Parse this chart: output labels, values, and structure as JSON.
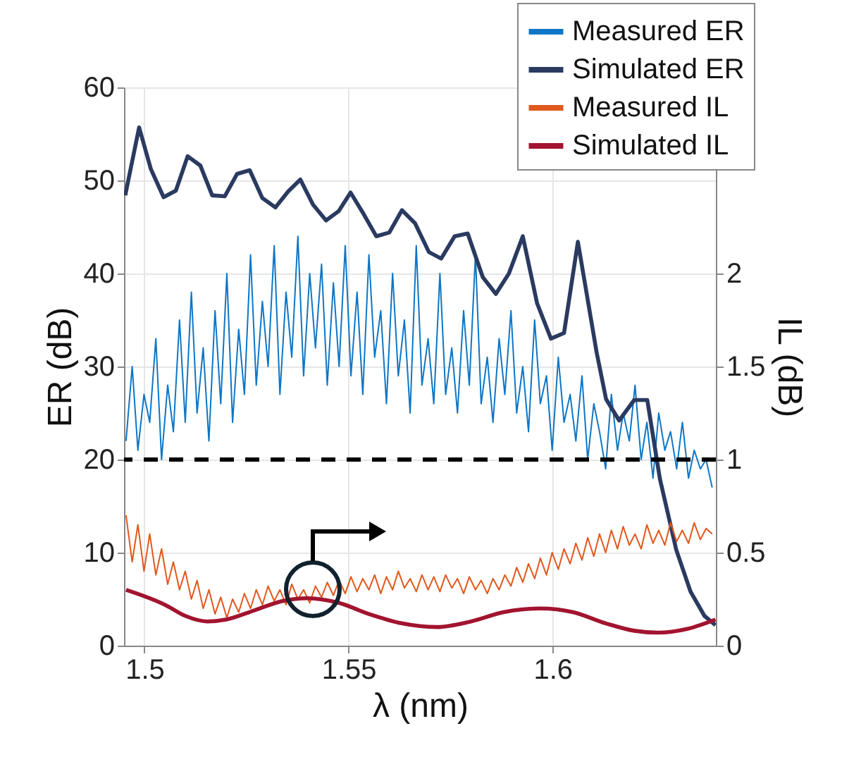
{
  "chart_data": {
    "type": "line",
    "xlabel": "λ (nm)",
    "ylabel": "ER (dB)",
    "y2label": "IL (dB)",
    "xlim": [
      1.495,
      1.64
    ],
    "xticks": [
      1.5,
      1.55,
      1.6
    ],
    "ylim": [
      0,
      60
    ],
    "yticks": [
      0,
      10,
      20,
      30,
      40,
      50,
      60
    ],
    "y2lim": [
      0,
      3
    ],
    "y2ticks": [
      0,
      0.5,
      1,
      1.5,
      2
    ],
    "grid": true,
    "legend": "top right",
    "ref_lines": [
      {
        "axis": "y",
        "value": 20,
        "color": "#000000",
        "line_style": "dashed"
      }
    ],
    "series": [
      {
        "name": "Measured ER",
        "color": "#0e76c6",
        "x": [
          1.4955,
          1.497,
          1.4984,
          1.4999,
          1.5013,
          1.5028,
          1.5042,
          1.5057,
          1.5071,
          1.5086,
          1.51,
          1.5115,
          1.5129,
          1.5144,
          1.5158,
          1.5173,
          1.5187,
          1.5202,
          1.5216,
          1.5231,
          1.5245,
          1.526,
          1.5274,
          1.5289,
          1.5303,
          1.5318,
          1.5332,
          1.5347,
          1.5361,
          1.5376,
          1.539,
          1.5405,
          1.5419,
          1.5434,
          1.5448,
          1.5463,
          1.5477,
          1.5492,
          1.5506,
          1.5521,
          1.5535,
          1.555,
          1.5564,
          1.5579,
          1.5593,
          1.5608,
          1.5622,
          1.5637,
          1.5651,
          1.5666,
          1.568,
          1.5695,
          1.5709,
          1.5724,
          1.5738,
          1.5753,
          1.5767,
          1.5782,
          1.5796,
          1.5811,
          1.5825,
          1.584,
          1.5854,
          1.5869,
          1.5883,
          1.5898,
          1.5912,
          1.5927,
          1.5941,
          1.5956,
          1.597,
          1.5985,
          1.5999,
          1.6014,
          1.6028,
          1.6043,
          1.6057,
          1.6072,
          1.6086,
          1.6101,
          1.6115,
          1.613,
          1.6144,
          1.6159,
          1.6173,
          1.6188,
          1.6202,
          1.6217,
          1.6231,
          1.6246,
          1.626,
          1.6275,
          1.6289,
          1.6304,
          1.6318,
          1.6333,
          1.6347,
          1.6362,
          1.6376,
          1.6391
        ],
        "values": [
          22,
          30,
          21,
          27,
          24,
          33,
          20,
          28,
          23,
          35,
          24,
          38,
          25,
          32,
          22,
          36,
          26,
          40,
          24,
          34,
          27,
          42,
          28,
          37,
          30,
          43,
          27,
          38,
          31,
          44,
          29,
          40,
          32,
          41,
          28,
          39,
          30,
          43,
          29,
          38,
          27,
          42,
          31,
          36,
          26,
          40,
          29,
          35,
          25,
          43,
          28,
          33,
          26,
          40,
          27,
          32,
          25,
          36,
          28,
          42,
          26,
          31,
          24,
          33,
          27,
          36,
          25,
          30,
          23,
          35,
          26,
          29,
          21,
          31,
          24,
          27,
          22,
          29,
          20,
          26,
          23,
          19,
          27,
          21,
          25,
          22,
          28,
          20,
          24,
          18,
          25,
          21,
          23,
          19,
          24,
          18,
          21,
          19,
          20,
          17
        ]
      },
      {
        "name": "Simulated ER",
        "color": "#2a3a60",
        "x": [
          1.4953,
          1.4987,
          1.5016,
          1.5047,
          1.5077,
          1.5106,
          1.5137,
          1.5166,
          1.5197,
          1.5227,
          1.5258,
          1.5289,
          1.5321,
          1.5352,
          1.5382,
          1.5413,
          1.5445,
          1.5476,
          1.5505,
          1.5537,
          1.5568,
          1.56,
          1.5631,
          1.5663,
          1.5697,
          1.5727,
          1.576,
          1.5792,
          1.5829,
          1.5861,
          1.5893,
          1.5927,
          1.5962,
          1.5996,
          1.6028,
          1.6062,
          1.6108,
          1.6131,
          1.6163,
          1.62,
          1.6232,
          1.6263,
          1.6303,
          1.6338,
          1.6372,
          1.6399
        ],
        "values": [
          48.4,
          55.7,
          51.2,
          48.2,
          48.9,
          52.6,
          51.6,
          48.4,
          48.3,
          50.7,
          51.1,
          48.1,
          47.1,
          48.8,
          50.1,
          47.4,
          45.7,
          46.7,
          48.7,
          46.4,
          44.0,
          44.4,
          46.8,
          45.4,
          42.3,
          41.6,
          44.0,
          44.3,
          39.6,
          37.8,
          40.0,
          44.0,
          36.8,
          33.0,
          33.6,
          43.4,
          31.5,
          26.5,
          24.2,
          26.4,
          26.4,
          17.9,
          10.3,
          5.8,
          3.2,
          2.2
        ]
      },
      {
        "name": "Measured IL",
        "color": "#e0581c",
        "axis": "y2",
        "x": [
          1.4955,
          1.497,
          1.4984,
          1.4999,
          1.5013,
          1.5028,
          1.5042,
          1.5057,
          1.5071,
          1.5086,
          1.51,
          1.5115,
          1.5129,
          1.5144,
          1.5158,
          1.5173,
          1.5187,
          1.5202,
          1.5216,
          1.5231,
          1.5245,
          1.526,
          1.5274,
          1.5289,
          1.5303,
          1.5318,
          1.5332,
          1.5347,
          1.5361,
          1.5376,
          1.539,
          1.5405,
          1.5419,
          1.5434,
          1.5448,
          1.5463,
          1.5477,
          1.5492,
          1.5506,
          1.5521,
          1.5535,
          1.555,
          1.5564,
          1.5579,
          1.5593,
          1.5608,
          1.5622,
          1.5637,
          1.5651,
          1.5666,
          1.568,
          1.5695,
          1.5709,
          1.5724,
          1.5738,
          1.5753,
          1.5767,
          1.5782,
          1.5796,
          1.5811,
          1.5825,
          1.584,
          1.5854,
          1.5869,
          1.5883,
          1.5898,
          1.5912,
          1.5927,
          1.5941,
          1.5956,
          1.597,
          1.5985,
          1.5999,
          1.6014,
          1.6028,
          1.6043,
          1.6057,
          1.6072,
          1.6086,
          1.6101,
          1.6115,
          1.613,
          1.6144,
          1.6159,
          1.6173,
          1.6188,
          1.6202,
          1.6217,
          1.6231,
          1.6246,
          1.626,
          1.6275,
          1.6289,
          1.6304,
          1.6318,
          1.6333,
          1.6347,
          1.6362,
          1.6376,
          1.6391
        ],
        "values": [
          0.7,
          0.45,
          0.65,
          0.4,
          0.6,
          0.38,
          0.52,
          0.33,
          0.45,
          0.3,
          0.4,
          0.25,
          0.35,
          0.2,
          0.3,
          0.17,
          0.26,
          0.15,
          0.25,
          0.18,
          0.28,
          0.2,
          0.3,
          0.22,
          0.32,
          0.24,
          0.3,
          0.22,
          0.33,
          0.25,
          0.3,
          0.23,
          0.32,
          0.26,
          0.34,
          0.27,
          0.35,
          0.28,
          0.37,
          0.29,
          0.36,
          0.3,
          0.38,
          0.28,
          0.37,
          0.3,
          0.4,
          0.31,
          0.36,
          0.29,
          0.38,
          0.3,
          0.37,
          0.29,
          0.38,
          0.31,
          0.36,
          0.28,
          0.37,
          0.3,
          0.35,
          0.28,
          0.36,
          0.3,
          0.38,
          0.32,
          0.42,
          0.34,
          0.44,
          0.36,
          0.47,
          0.38,
          0.5,
          0.41,
          0.52,
          0.44,
          0.55,
          0.46,
          0.58,
          0.48,
          0.6,
          0.5,
          0.62,
          0.52,
          0.64,
          0.54,
          0.6,
          0.52,
          0.65,
          0.55,
          0.62,
          0.54,
          0.66,
          0.56,
          0.62,
          0.55,
          0.66,
          0.57,
          0.63,
          0.6
        ]
      },
      {
        "name": "Simulated IL",
        "color": "#a2142f",
        "axis": "y2",
        "x": [
          1.4955,
          1.505,
          1.51,
          1.5154,
          1.52,
          1.527,
          1.5338,
          1.54,
          1.5476,
          1.555,
          1.563,
          1.5717,
          1.58,
          1.588,
          1.597,
          1.605,
          1.613,
          1.62,
          1.6258,
          1.633,
          1.6399
        ],
        "values": [
          0.3,
          0.22,
          0.16,
          0.13,
          0.14,
          0.19,
          0.24,
          0.255,
          0.23,
          0.17,
          0.12,
          0.1,
          0.13,
          0.18,
          0.2,
          0.18,
          0.12,
          0.08,
          0.07,
          0.09,
          0.14
        ]
      }
    ]
  }
}
